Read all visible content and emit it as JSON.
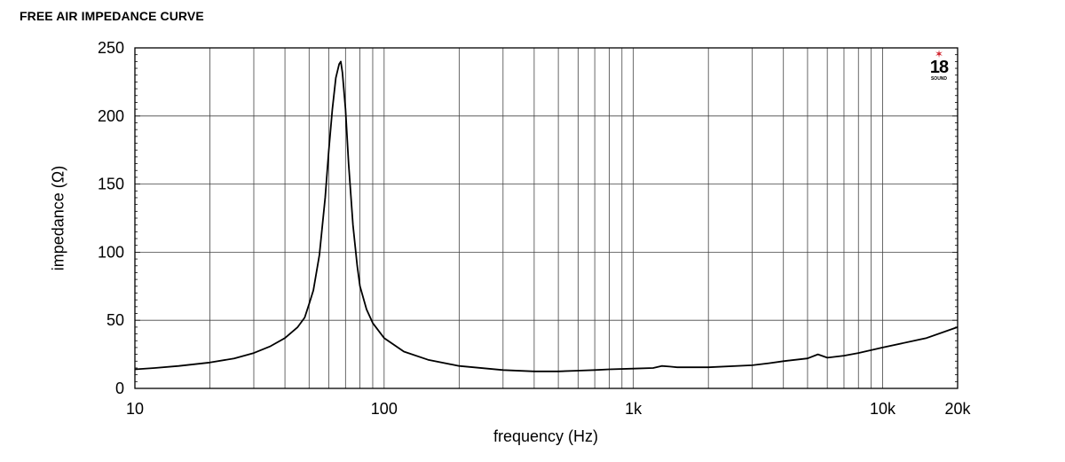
{
  "page": {
    "title": "FREE AIR IMPEDANCE CURVE"
  },
  "logo": {
    "mark": "18",
    "subtext": "SOUND",
    "star_color": "#d0202a"
  },
  "chart_data": {
    "type": "line",
    "title": "FREE AIR IMPEDANCE CURVE",
    "xlabel": "frequency (Hz)",
    "ylabel": "impedance (Ω)",
    "x_scale": "log",
    "xlim": [
      10,
      20000
    ],
    "ylim": [
      0,
      250
    ],
    "grid": true,
    "y_ticks": [
      0,
      50,
      100,
      150,
      200,
      250
    ],
    "y_tick_labels": [
      "0",
      "50",
      "100",
      "150",
      "200",
      "250"
    ],
    "x_ticks": [
      10,
      100,
      1000,
      10000,
      20000
    ],
    "x_tick_labels": [
      "10",
      "100",
      "1k",
      "10k",
      "20k"
    ],
    "line_color": "#000000",
    "series": [
      {
        "x": [
          10,
          12,
          15,
          20,
          25,
          30,
          35,
          40,
          45,
          48,
          50,
          52,
          55,
          58,
          60,
          62,
          64,
          66,
          67,
          68,
          70,
          72,
          75,
          78,
          80,
          85,
          90,
          100,
          120,
          150,
          200,
          300,
          400,
          500,
          600,
          700,
          800,
          1000,
          1200,
          1300,
          1400,
          1500,
          2000,
          3000,
          3500,
          4000,
          5000,
          5500,
          6000,
          7000,
          8000,
          10000,
          15000,
          20000
        ],
        "y": [
          14,
          15,
          16.5,
          19,
          22,
          26,
          31,
          37,
          45,
          52,
          62,
          72,
          98,
          140,
          175,
          205,
          228,
          238,
          240,
          232,
          205,
          165,
          120,
          90,
          75,
          58,
          48,
          37,
          27,
          21,
          16.5,
          13.5,
          12.5,
          12.5,
          13,
          13.5,
          14,
          14.5,
          15,
          16.5,
          16,
          15.5,
          15.5,
          17,
          18.5,
          20,
          22,
          25,
          22.5,
          24,
          26,
          30,
          37,
          45
        ]
      }
    ]
  }
}
